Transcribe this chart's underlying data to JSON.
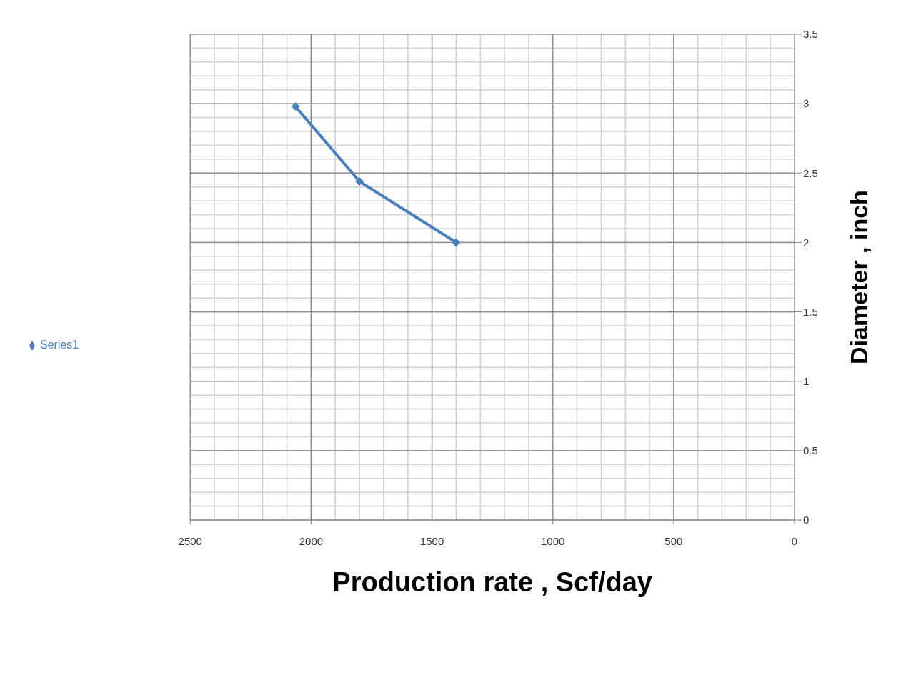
{
  "chart_data": {
    "type": "line",
    "xlabel": "Production rate , Scf/day",
    "ylabel": "Diameter , inch",
    "x": [
      2065,
      1800,
      1400
    ],
    "series": [
      {
        "name": "Series1",
        "color": "#4a7ebb",
        "values": [
          2.98,
          2.44,
          2.0
        ]
      }
    ],
    "xlim": [
      2500,
      0
    ],
    "xticks": [
      2500,
      2000,
      1500,
      1000,
      500,
      0
    ],
    "ylim": [
      0,
      3.5
    ],
    "yticks": [
      0,
      0.5,
      1,
      1.5,
      2,
      2.5,
      3,
      3.5
    ],
    "grid": true,
    "legend": "left",
    "marker": "diamond",
    "line_style": "solid"
  }
}
